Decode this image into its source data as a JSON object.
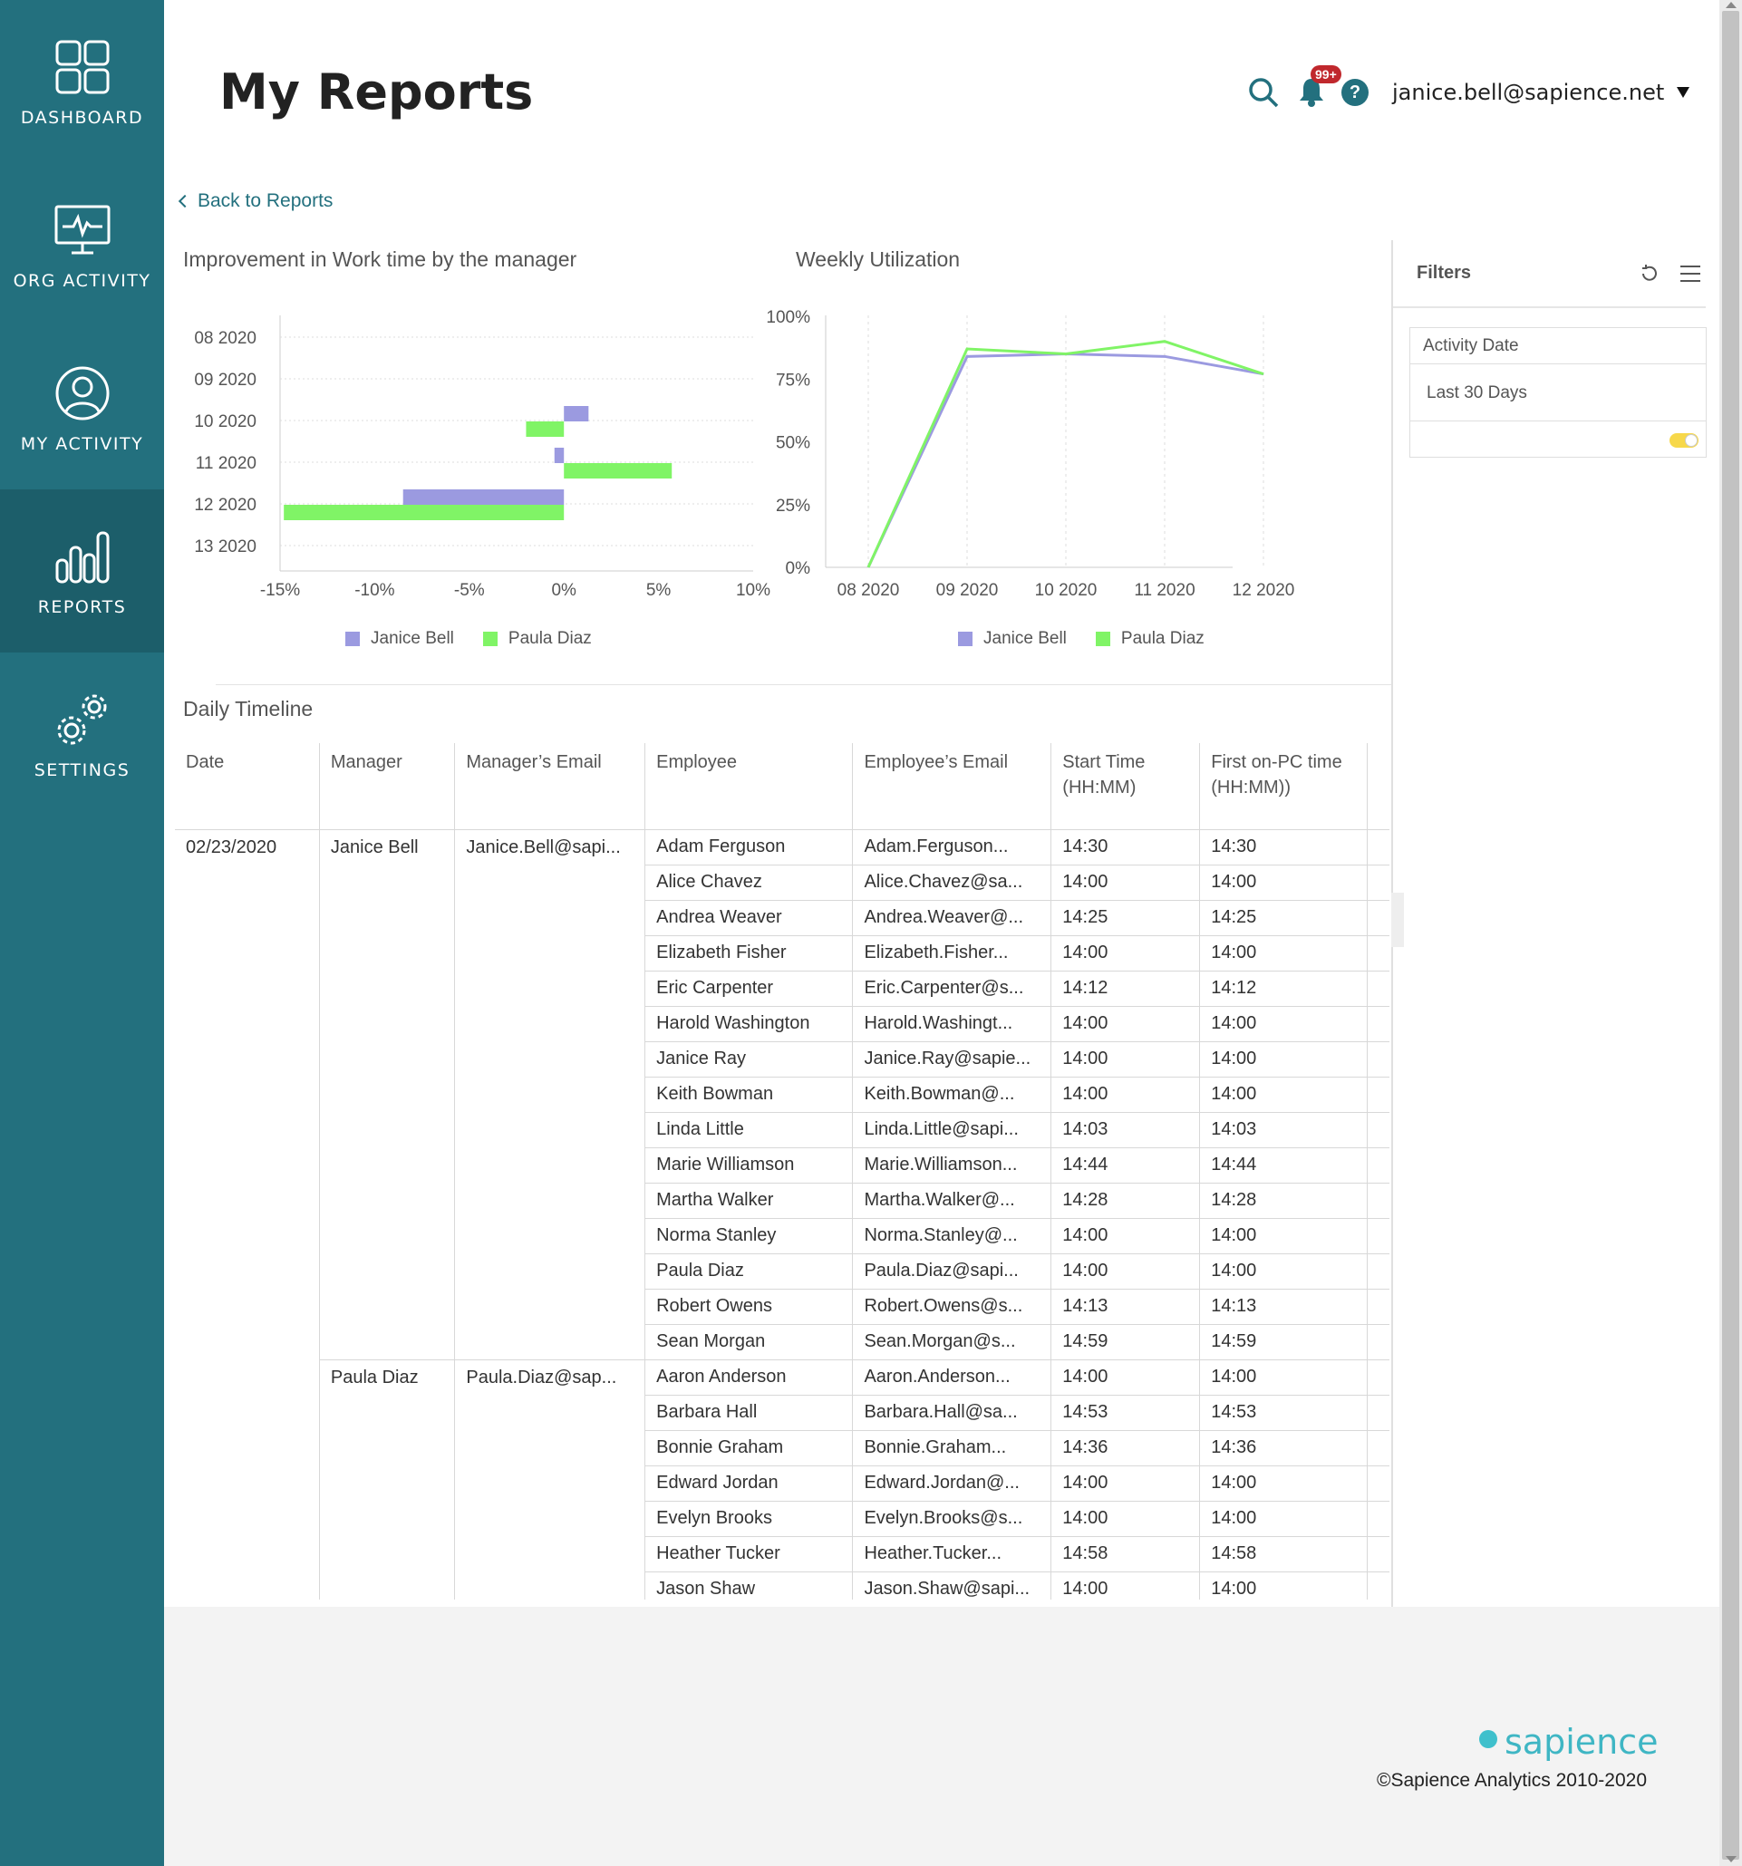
{
  "sidebar": {
    "items": [
      {
        "label": "DASHBOARD",
        "icon": "dashboard-grid-icon"
      },
      {
        "label": "ORG ACTIVITY",
        "icon": "monitor-pulse-icon"
      },
      {
        "label": "MY ACTIVITY",
        "icon": "user-circle-icon"
      },
      {
        "label": "REPORTS",
        "icon": "bar-chart-icon",
        "active": true
      },
      {
        "label": "SETTINGS",
        "icon": "gears-icon"
      }
    ]
  },
  "header": {
    "title": "My Reports",
    "notification_badge": "99+",
    "help_label": "?",
    "user_email": "janice.bell@sapience.net"
  },
  "back_link": "Back to Reports",
  "charts": {
    "improvement_title": "Improvement in Work time by the manager",
    "weekly_title": "Weekly Utilization"
  },
  "colors": {
    "primary": "#23707e",
    "series_janice": "#9b9ae0",
    "series_paula": "#80f466",
    "badge": "#c0282d",
    "brand": "#3fb6c4"
  },
  "chart_data": [
    {
      "type": "bar",
      "orientation": "horizontal",
      "title": "Improvement in Work time by the manager",
      "categories": [
        "08 2020",
        "09 2020",
        "10 2020",
        "11 2020",
        "12 2020",
        "13 2020"
      ],
      "xlim": [
        -15,
        10
      ],
      "xticks": [
        "-15%",
        "-10%",
        "-5%",
        "0%",
        "5%",
        "10%"
      ],
      "series": [
        {
          "name": "Janice Bell",
          "values": [
            0,
            0,
            1.3,
            -0.5,
            -8.5,
            0
          ]
        },
        {
          "name": "Paula Diaz",
          "values": [
            0,
            0,
            -2.0,
            5.7,
            -14.8,
            0
          ]
        }
      ],
      "legend": "bottom",
      "grid": true
    },
    {
      "type": "line",
      "title": "Weekly Utilization",
      "categories": [
        "08 2020",
        "09 2020",
        "10 2020",
        "11 2020",
        "12 2020"
      ],
      "ylim": [
        0,
        100
      ],
      "yticks": [
        "0%",
        "25%",
        "50%",
        "75%",
        "100%"
      ],
      "series": [
        {
          "name": "Janice Bell",
          "values": [
            0,
            84,
            85,
            84,
            77
          ]
        },
        {
          "name": "Paula Diaz",
          "values": [
            0,
            87,
            85,
            90,
            77
          ]
        }
      ],
      "legend": "bottom",
      "grid": true
    }
  ],
  "timeline": {
    "title": "Daily Timeline",
    "columns": [
      "Date",
      "Manager",
      "Manager’s Email",
      "Employee",
      "Employee’s Email",
      "Start Time (HH:MM)",
      "First on-PC time (HH:MM))"
    ],
    "date": "02/23/2020",
    "groups": [
      {
        "manager": "Janice Bell",
        "manager_email": "Janice.Bell@sapi...",
        "rows": [
          [
            "Adam Ferguson",
            "Adam.Ferguson...",
            "14:30",
            "14:30"
          ],
          [
            "Alice Chavez",
            "Alice.Chavez@sa...",
            "14:00",
            "14:00"
          ],
          [
            "Andrea Weaver",
            "Andrea.Weaver@...",
            "14:25",
            "14:25"
          ],
          [
            "Elizabeth Fisher",
            "Elizabeth.Fisher...",
            "14:00",
            "14:00"
          ],
          [
            "Eric Carpenter",
            "Eric.Carpenter@s...",
            "14:12",
            "14:12"
          ],
          [
            "Harold Washington",
            "Harold.Washingt...",
            "14:00",
            "14:00"
          ],
          [
            "Janice Ray",
            "Janice.Ray@sapie...",
            "14:00",
            "14:00"
          ],
          [
            "Keith Bowman",
            "Keith.Bowman@...",
            "14:00",
            "14:00"
          ],
          [
            "Linda Little",
            "Linda.Little@sapi...",
            "14:03",
            "14:03"
          ],
          [
            "Marie Williamson",
            "Marie.Williamson...",
            "14:44",
            "14:44"
          ],
          [
            "Martha Walker",
            "Martha.Walker@...",
            "14:28",
            "14:28"
          ],
          [
            "Norma Stanley",
            "Norma.Stanley@...",
            "14:00",
            "14:00"
          ],
          [
            "Paula Diaz",
            "Paula.Diaz@sapi...",
            "14:00",
            "14:00"
          ],
          [
            "Robert Owens",
            "Robert.Owens@s...",
            "14:13",
            "14:13"
          ],
          [
            "Sean Morgan",
            "Sean.Morgan@s...",
            "14:59",
            "14:59"
          ]
        ]
      },
      {
        "manager": "Paula Diaz",
        "manager_email": "Paula.Diaz@sap...",
        "rows": [
          [
            "Aaron Anderson",
            "Aaron.Anderson...",
            "14:00",
            "14:00"
          ],
          [
            "Barbara Hall",
            "Barbara.Hall@sa...",
            "14:53",
            "14:53"
          ],
          [
            "Bonnie Graham",
            "Bonnie.Graham...",
            "14:36",
            "14:36"
          ],
          [
            "Edward Jordan",
            "Edward.Jordan@...",
            "14:00",
            "14:00"
          ],
          [
            "Evelyn Brooks",
            "Evelyn.Brooks@s...",
            "14:00",
            "14:00"
          ],
          [
            "Heather Tucker",
            "Heather.Tucker...",
            "14:58",
            "14:58"
          ],
          [
            "Jason Shaw",
            "Jason.Shaw@sapi...",
            "14:00",
            "14:00"
          ]
        ]
      }
    ]
  },
  "filters": {
    "title": "Filters",
    "activity_date_label": "Activity Date",
    "activity_date_value": "Last 30 Days",
    "toggle_on": true
  },
  "footer": {
    "brand": "sapience",
    "copyright": "©Sapience Analytics 2010-2020"
  }
}
